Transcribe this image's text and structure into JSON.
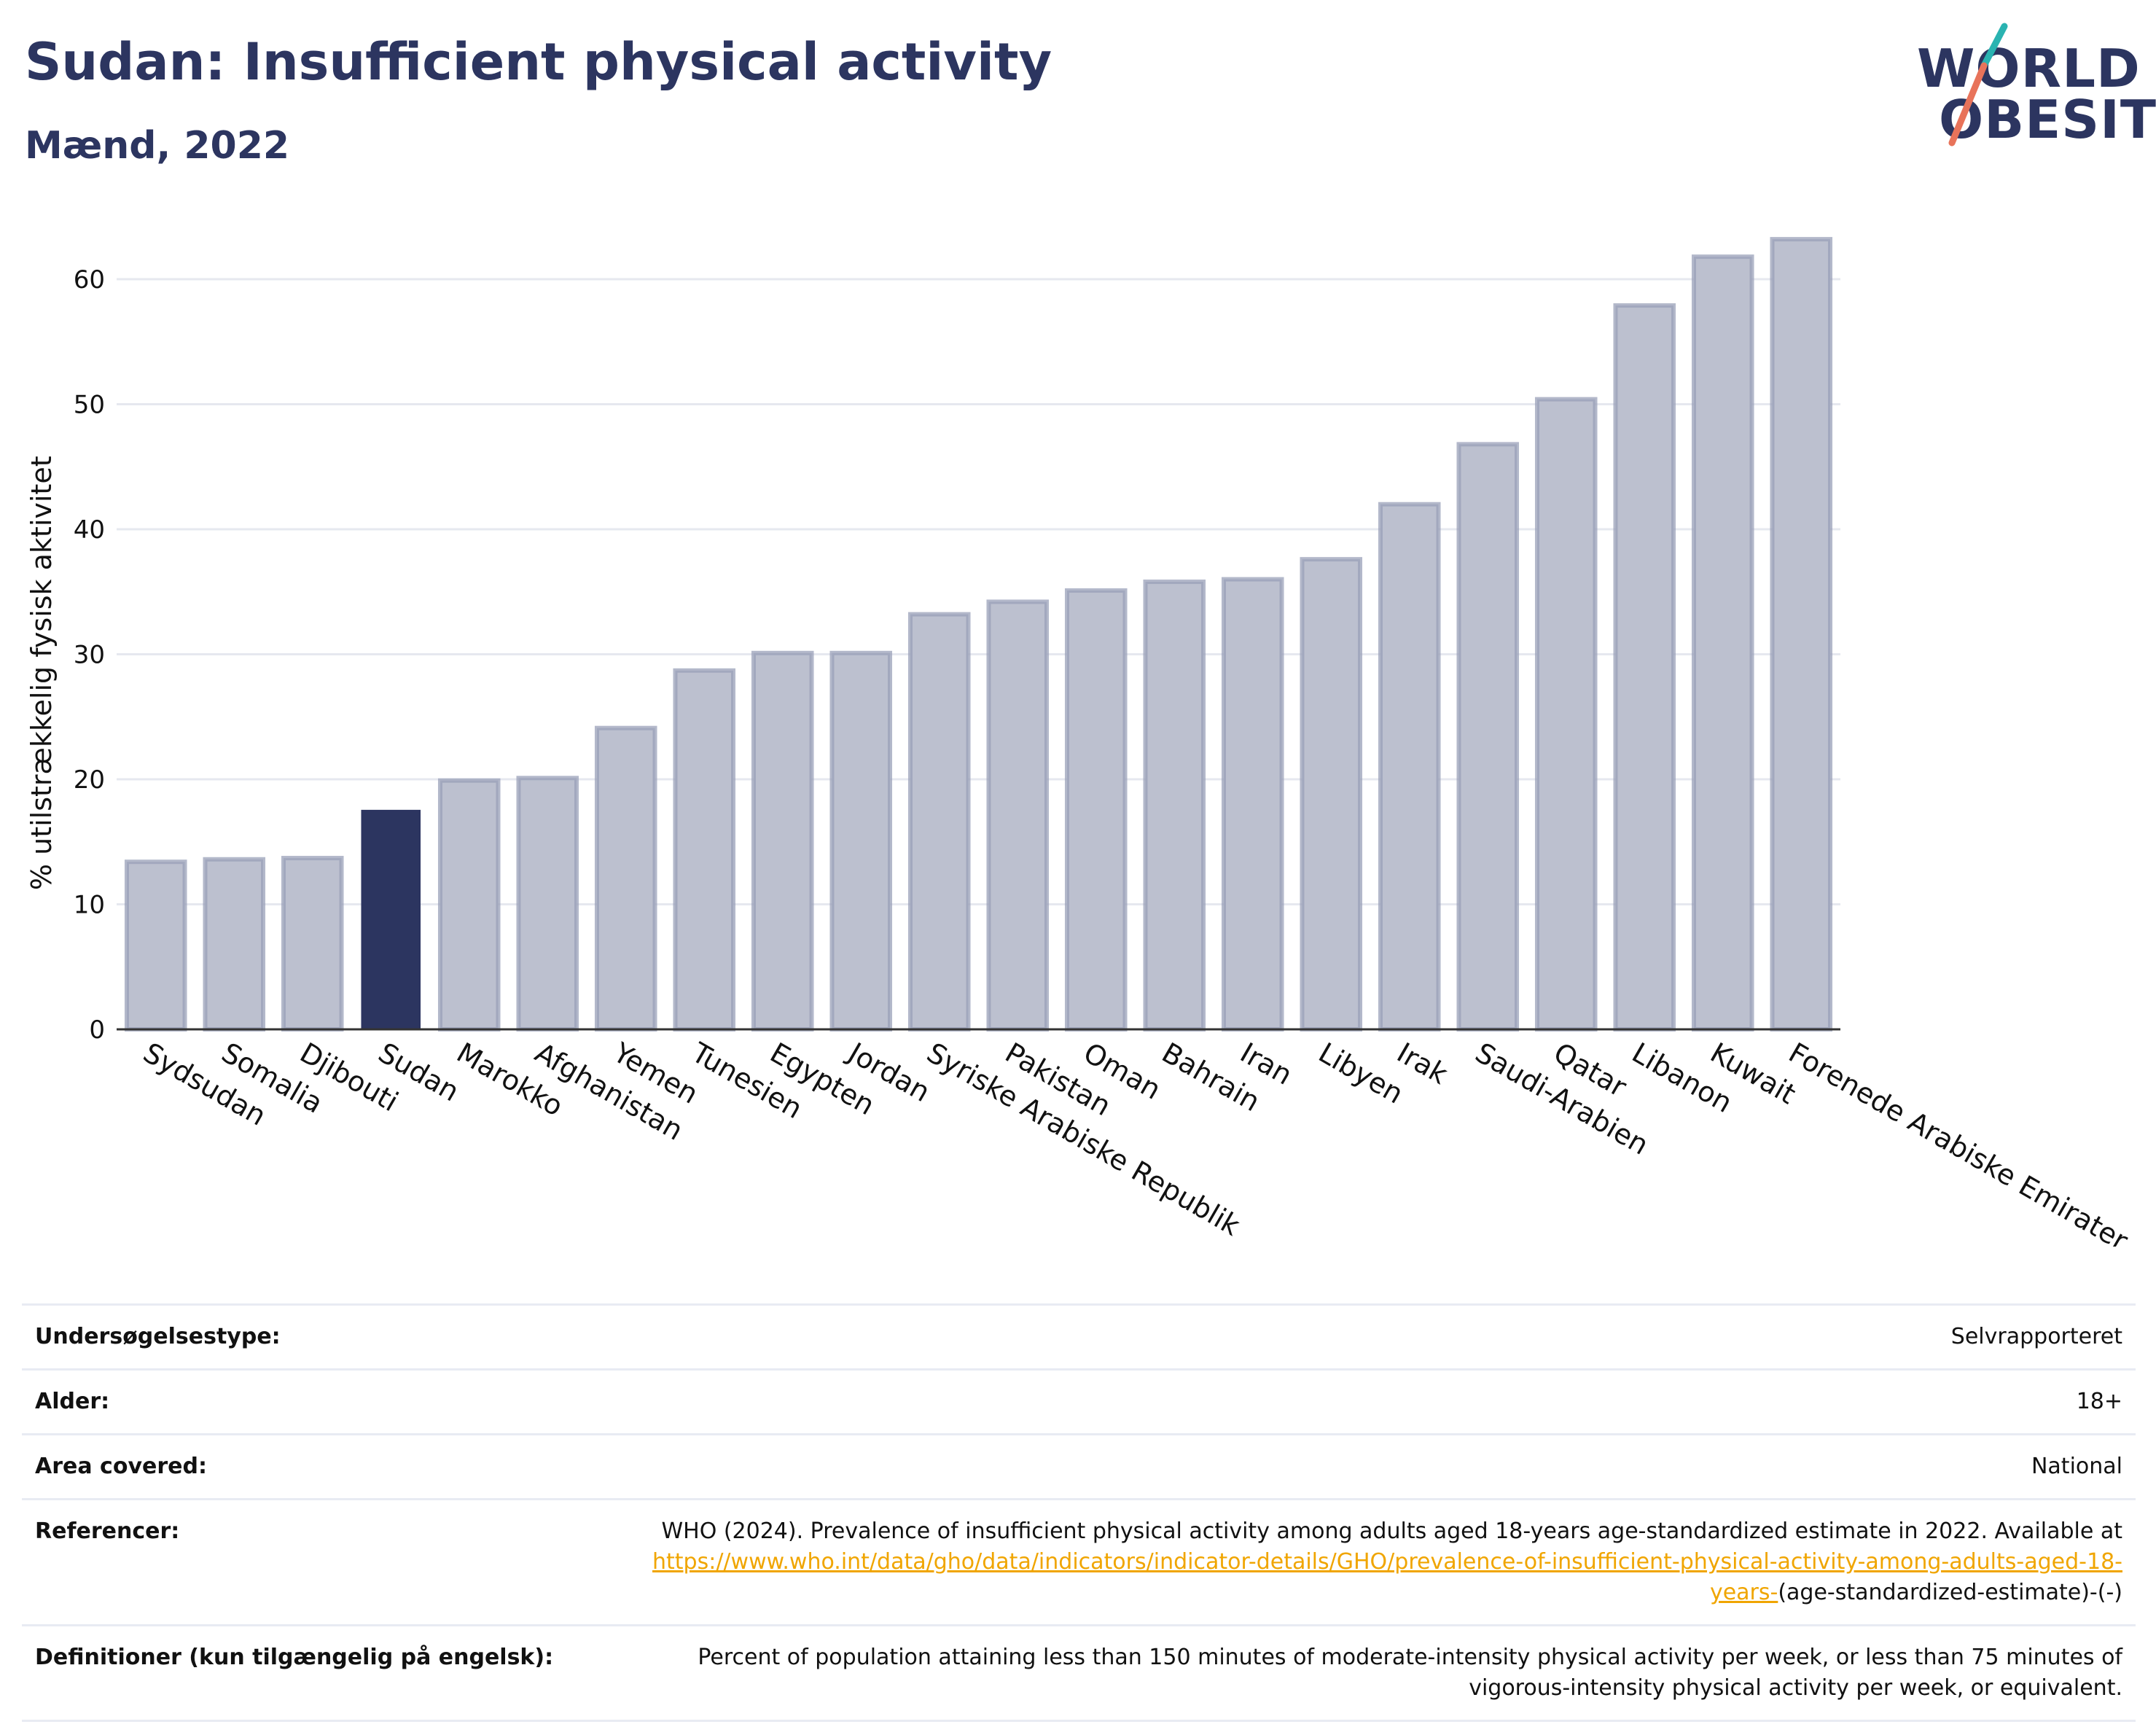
{
  "header": {
    "title": "Sudan: Insufficient physical activity",
    "subtitle": "Mænd, 2022",
    "logo_line1": "WORLD",
    "logo_line2": "OBESITY"
  },
  "colors": {
    "title": "#2c3560",
    "bar_default": "#bcc0cf",
    "bar_default_border": "#9aa0b8",
    "bar_highlight": "#2c3560",
    "link": "#f0a500",
    "logo_teal": "#2ab3b1",
    "logo_coral": "#e8735a"
  },
  "chart_data": {
    "type": "bar",
    "ylabel": "% utilstrækkelig fysisk aktivitet",
    "ylim": [
      0,
      65
    ],
    "yticks": [
      0,
      10,
      20,
      30,
      40,
      50,
      60
    ],
    "grid": true,
    "highlight": "Sudan",
    "categories": [
      "Sydsudan",
      "Somalia",
      "Djibouti",
      "Sudan",
      "Marokko",
      "Afghanistan",
      "Yemen",
      "Tunesien",
      "Egypten",
      "Jordan",
      "Syriske Arabiske Republik",
      "Pakistan",
      "Oman",
      "Bahrain",
      "Iran",
      "Libyen",
      "Irak",
      "Saudi-Arabien",
      "Qatar",
      "Libanon",
      "Kuwait",
      "Forenede Arabiske Emirater"
    ],
    "values": [
      13.4,
      13.6,
      13.7,
      17.5,
      19.9,
      20.1,
      24.1,
      28.7,
      30.1,
      30.1,
      33.2,
      34.2,
      35.1,
      35.8,
      36.0,
      37.6,
      42.0,
      46.8,
      50.4,
      57.9,
      61.8,
      63.2
    ]
  },
  "info": {
    "survey_label": "Undersøgelsestype:",
    "survey_value": "Selvrapporteret",
    "age_label": "Alder:",
    "age_value": "18+",
    "area_label": "Area covered:",
    "area_value": "National",
    "ref_label": "Referencer:",
    "ref_text": "WHO (2024). Prevalence of insufficient physical activity among adults aged 18-years age-standardized estimate in 2022. Available at",
    "ref_link": "https://www.who.int/data/gho/data/indicators/indicator-details/GHO/prevalence-of-insufficient-physical-activity-among-adults-aged-18-years-",
    "ref_suffix": "(age-standardized-estimate)-(-)",
    "def_label": "Definitioner (kun tilgængelig på engelsk):",
    "def_value": "Percent of population attaining less than 150 minutes of moderate-intensity physical activity per week, or less than 75 minutes of vigorous-intensity physical activity per week, or equivalent."
  }
}
